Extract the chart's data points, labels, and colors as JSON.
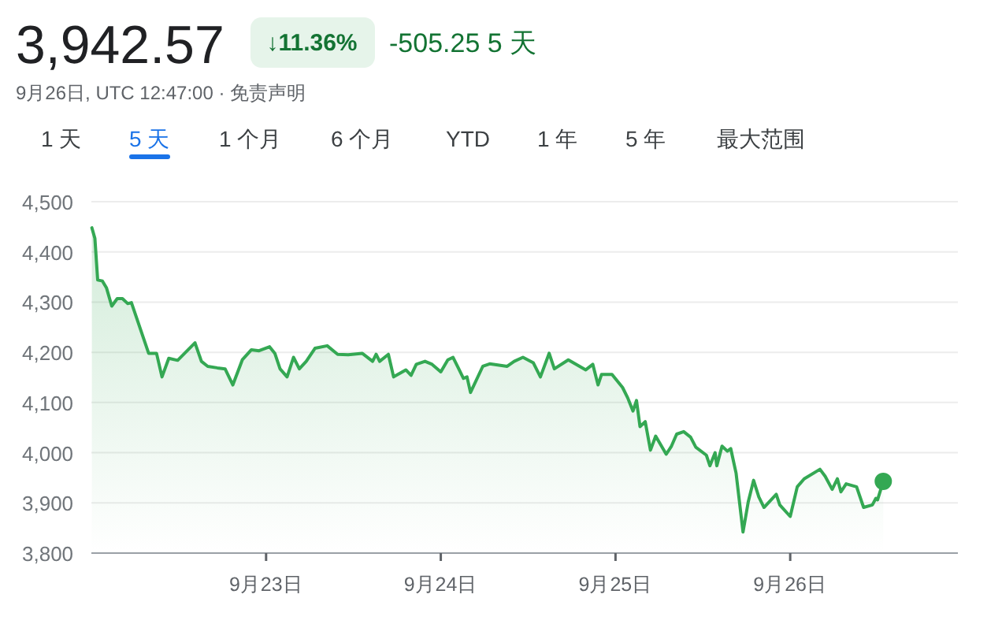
{
  "chart_data": {
    "type": "area",
    "title": "3,942.57",
    "annotations": [
      "↓11.36%",
      "-505.25 5 天",
      "9月26日, UTC 12:47:00 · 免责声明",
      "1 天",
      "5 天",
      "1 个月",
      "6 个月",
      "YTD",
      "1 年",
      "5 年",
      "最大范围"
    ],
    "xlim": [
      "--09-22T00:00",
      "--09-26T23:02"
    ],
    "xticks": [
      {
        "value": "--09-23",
        "label": "9月23日"
      },
      {
        "value": "--09-24",
        "label": "9月24日"
      },
      {
        "value": "--09-25",
        "label": "9月25日"
      },
      {
        "value": "--09-26",
        "label": "9月26日"
      }
    ],
    "ylim": [
      3800,
      4500
    ],
    "yticks": [
      {
        "value": 3800,
        "label": "3,800"
      },
      {
        "value": 3900,
        "label": "3,900"
      },
      {
        "value": 4000,
        "label": "4,000"
      },
      {
        "value": 4100,
        "label": "4,100"
      },
      {
        "value": 4200,
        "label": "4,200"
      },
      {
        "value": 4300,
        "label": "4,300"
      },
      {
        "value": 4400,
        "label": "4,400"
      },
      {
        "value": 4500,
        "label": "4,500"
      }
    ],
    "grid": "y",
    "line_style": "solid",
    "series": [
      {
        "color": "#34a853",
        "marker": "none",
        "x": [
          "--09-22T00:04",
          "--09-22T00:29",
          "--09-22T00:52",
          "--09-22T01:31",
          "--09-22T02:05",
          "--09-22T02:48",
          "--09-22T03:33",
          "--09-22T04:16",
          "--09-22T05:00",
          "--09-22T05:30",
          "--09-22T07:52",
          "--09-22T08:57",
          "--09-22T09:42",
          "--09-22T10:38",
          "--09-22T11:51",
          "--09-22T14:14",
          "--09-22T15:07",
          "--09-22T15:59",
          "--09-22T17:17",
          "--09-22T18:22",
          "--09-22T19:26",
          "--09-22T20:44",
          "--09-22T21:59",
          "--09-22T23:02",
          "--09-23T00:29",
          "--09-23T01:12",
          "--09-23T01:55",
          "--09-23T02:53",
          "--09-23T03:46",
          "--09-23T04:34",
          "--09-23T05:31",
          "--09-23T06:43",
          "--09-23T08:24",
          "--09-23T09:50",
          "--09-23T11:17",
          "--09-23T13:12",
          "--09-23T14:38",
          "--09-23T15:07",
          "--09-23T15:36",
          "--09-23T16:48",
          "--09-23T17:31",
          "--09-23T18:29",
          "--09-23T19:12",
          "--09-23T19:55",
          "--09-23T20:38",
          "--09-23T21:50",
          "--09-23T22:48",
          "--09-24T00:00",
          "--09-24T00:58",
          "--09-24T01:41",
          "--09-24T02:24",
          "--09-24T03:07",
          "--09-24T03:36",
          "--09-24T04:05",
          "--09-24T05:46",
          "--09-24T06:43",
          "--09-24T09:07",
          "--09-24T10:05",
          "--09-24T11:17",
          "--09-24T12:43",
          "--09-24T13:41",
          "--09-24T14:53",
          "--09-24T15:36",
          "--09-24T17:31",
          "--09-24T19:55",
          "--09-24T20:53",
          "--09-24T21:36",
          "--09-24T22:05",
          "--09-24T23:31",
          "--09-25T00:58",
          "--09-25T01:41",
          "--09-25T02:24",
          "--09-25T02:53",
          "--09-25T03:22",
          "--09-25T04:05",
          "--09-25T04:48",
          "--09-25T05:31",
          "--09-25T06:58",
          "--09-25T07:41",
          "--09-25T08:24",
          "--09-25T09:22",
          "--09-25T10:19",
          "--09-25T11:02",
          "--09-25T12:29",
          "--09-25T12:58",
          "--09-25T13:41",
          "--09-25T13:55",
          "--09-25T14:38",
          "--09-25T15:22",
          "--09-25T15:50",
          "--09-25T16:34",
          "--09-25T17:31",
          "--09-25T18:14",
          "--09-25T18:58",
          "--09-25T19:41",
          "--09-25T20:24",
          "--09-25T22:05",
          "--09-25T22:34",
          "--09-26T00:00",
          "--09-26T00:58",
          "--09-26T01:55",
          "--09-26T04:05",
          "--09-26T04:48",
          "--09-26T05:46",
          "--09-26T06:29",
          "--09-26T06:58",
          "--09-26T07:41",
          "--09-26T09:07",
          "--09-26T10:05",
          "--09-26T11:17",
          "--09-26T11:46",
          "--09-26T12:00",
          "--09-26T12:47"
        ],
        "values": [
          4448,
          4427,
          4344,
          4342,
          4328,
          4292,
          4307,
          4307,
          4297,
          4299,
          4198,
          4198,
          4151,
          4188,
          4184,
          4219,
          4182,
          4172,
          4169,
          4167,
          4135,
          4185,
          4205,
          4203,
          4211,
          4198,
          4167,
          4151,
          4190,
          4167,
          4182,
          4208,
          4213,
          4196,
          4195,
          4198,
          4182,
          4196,
          4182,
          4196,
          4151,
          4159,
          4165,
          4154,
          4176,
          4182,
          4176,
          4161,
          4185,
          4190,
          4169,
          4148,
          4151,
          4120,
          4172,
          4177,
          4172,
          4182,
          4190,
          4179,
          4151,
          4198,
          4167,
          4185,
          4165,
          4176,
          4135,
          4156,
          4156,
          4130,
          4109,
          4083,
          4104,
          4052,
          4062,
          4005,
          4033,
          3997,
          4013,
          4037,
          4042,
          4031,
          4011,
          3995,
          3974,
          4000,
          3974,
          4013,
          4003,
          4008,
          3959,
          3842,
          3902,
          3945,
          3912,
          3891,
          3917,
          3896,
          3873,
          3932,
          3948,
          3967,
          3953,
          3927,
          3948,
          3922,
          3938,
          3932,
          3891,
          3896,
          3909,
          3906,
          3943
        ]
      },
      {
        "type": "scatter",
        "color": "#34a853",
        "marker": "circle",
        "x": [
          "--09-26T12:47"
        ],
        "values": [
          3943
        ]
      }
    ]
  }
}
